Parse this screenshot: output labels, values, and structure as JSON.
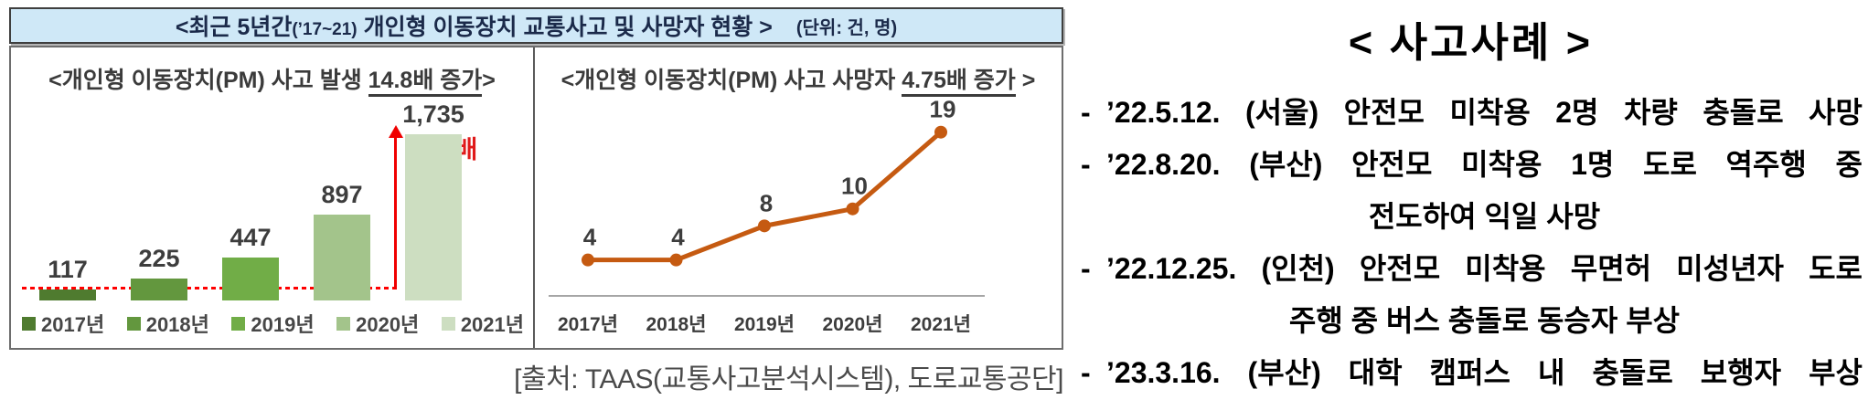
{
  "header": {
    "title_main": "<최근 5년간",
    "title_paren": "(’17~21)",
    "title_rest": " 개인형 이동장치 교통사고 및 사망자 현황 >",
    "unit": "(단위: 건, 명)"
  },
  "chart_data": [
    {
      "type": "bar",
      "title_prefix": "<개인형 이동장치(PM) 사고 발생 ",
      "title_emph": "14.8배 증가",
      "title_suffix": ">",
      "categories": [
        "2017년",
        "2018년",
        "2019년",
        "2020년",
        "2021년"
      ],
      "values": [
        117,
        225,
        447,
        897,
        1735
      ],
      "value_labels": [
        "117",
        "225",
        "447",
        "897",
        "1,735"
      ],
      "bar_colors": [
        "#4f7b2f",
        "#63973e",
        "#71ad47",
        "#a3c48b",
        "#cddec1"
      ],
      "growth_label": "14.8배",
      "annotation": "red dashed line at 2017 level with red arrow up to 2021 bar",
      "ylim": [
        0,
        1900
      ],
      "legend_position": "bottom",
      "grid": false
    },
    {
      "type": "line",
      "title_prefix": "<개인형 이동장치(PM) 사고 사망자 ",
      "title_emph": "4.75배 증가",
      "title_suffix": " >",
      "categories": [
        "2017년",
        "2018년",
        "2019년",
        "2020년",
        "2021년"
      ],
      "values": [
        4,
        4,
        8,
        10,
        19
      ],
      "value_labels": [
        "4",
        "4",
        "8",
        "10",
        "19"
      ],
      "line_color": "#c55a11",
      "label_color": "#3d3d3d",
      "axis_color": "#a6a6a6",
      "ylim": [
        0,
        22
      ],
      "grid": false
    }
  ],
  "source": "[출처: TAAS(교통사고분석시스템), 도로교통공단]",
  "cases": {
    "title": "< 사고사례 >",
    "entries": [
      {
        "bullet": "-",
        "lines": [
          {
            "text": "’22.5.12. (서울) 안전모 미착용 2명 차량 충돌로 사망",
            "align": "justify"
          }
        ]
      },
      {
        "bullet": "-",
        "lines": [
          {
            "text": "’22.8.20. (부산) 안전모 미착용 1명 도로 역주행 중",
            "align": "justify"
          },
          {
            "text": "전도하여 익일 사망",
            "align": "center"
          }
        ]
      },
      {
        "bullet": "-",
        "lines": [
          {
            "text": "’22.12.25. (인천) 안전모 미착용 무면허 미성년자 도로",
            "align": "justify"
          },
          {
            "text": "주행 중 버스 충돌로 동승자 부상",
            "align": "center"
          }
        ]
      },
      {
        "bullet": "-",
        "lines": [
          {
            "text": "’23.3.16. (부산) 대학 캠퍼스 내 충돌로 보행자 부상",
            "align": "justify"
          }
        ]
      }
    ]
  }
}
